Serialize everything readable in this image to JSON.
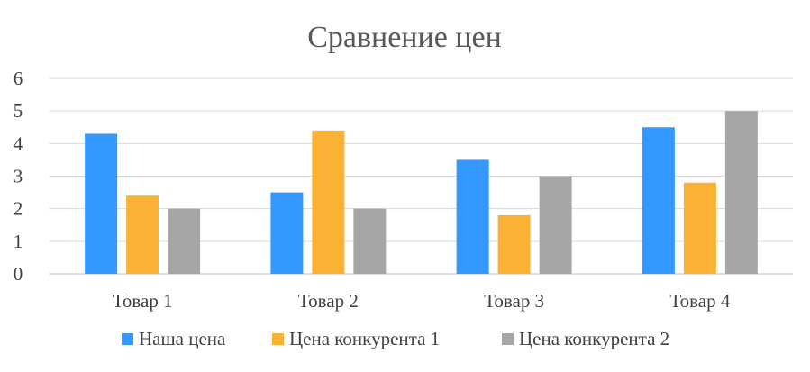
{
  "chart_data": {
    "type": "bar",
    "title": "Сравнение цен",
    "xlabel": "",
    "ylabel": "",
    "categories": [
      "Товар 1",
      "Товар 2",
      "Товар 3",
      "Товар 4"
    ],
    "ylim": [
      0,
      6
    ],
    "yticks": [
      "0",
      "1",
      "2",
      "3",
      "4",
      "5",
      "6"
    ],
    "grid": true,
    "legend_position": "bottom",
    "series": [
      {
        "name": "Наша цена",
        "color": "#3399FF",
        "values": [
          4.3,
          2.5,
          3.5,
          4.5
        ]
      },
      {
        "name": "Цена конкурента 1",
        "color": "#F9B233",
        "values": [
          2.4,
          4.4,
          1.8,
          2.8
        ]
      },
      {
        "name": "Цена конкурента 2",
        "color": "#A6A6A6",
        "values": [
          2.0,
          2.0,
          3.0,
          5.0
        ]
      }
    ]
  }
}
